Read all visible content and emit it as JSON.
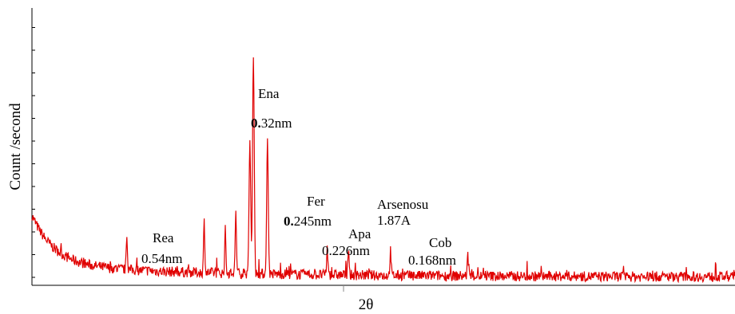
{
  "chart_data": {
    "type": "line",
    "title": "",
    "xlabel": "2θ",
    "ylabel": "Count /second",
    "xlim": [
      0,
      100
    ],
    "ylim": [
      0,
      100
    ],
    "grid": false,
    "legend": "none",
    "color": "#e00000",
    "peaks": [
      {
        "x": 13.5,
        "y": 14
      },
      {
        "x": 24.5,
        "y": 23
      },
      {
        "x": 27.5,
        "y": 19
      },
      {
        "x": 29.0,
        "y": 28
      },
      {
        "x": 31.0,
        "y": 58
      },
      {
        "x": 31.5,
        "y": 100
      },
      {
        "x": 33.5,
        "y": 58
      },
      {
        "x": 42.0,
        "y": 12
      },
      {
        "x": 45.0,
        "y": 10
      },
      {
        "x": 51.0,
        "y": 11
      },
      {
        "x": 62.0,
        "y": 9
      }
    ],
    "annotations": [
      {
        "id": "ena",
        "lines": [
          "Ena",
          "0.32nm"
        ],
        "bold_lead": "0."
      },
      {
        "id": "fer",
        "lines": [
          "Fer",
          "0.245nm"
        ],
        "bold_lead": "0."
      },
      {
        "id": "arsenosu",
        "lines": [
          "Arsenosu",
          "1.87A"
        ]
      },
      {
        "id": "rea",
        "lines": [
          "Rea",
          "0.54nm"
        ]
      },
      {
        "id": "apa",
        "lines": [
          "Apa",
          "0.226nm"
        ]
      },
      {
        "id": "cob",
        "lines": [
          "Cob",
          "0.168nm"
        ]
      }
    ]
  }
}
